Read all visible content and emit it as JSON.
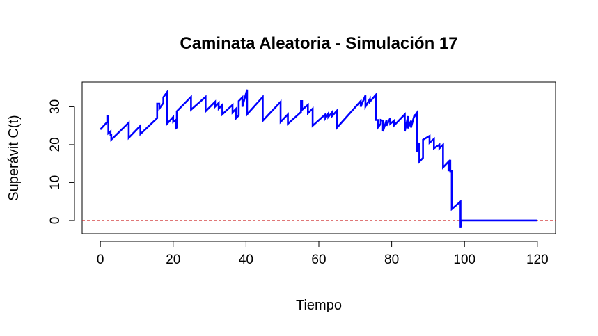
{
  "chart_data": {
    "type": "line",
    "title": "Caminata Aleatoria - Simulación 17",
    "xlabel": "Tiempo",
    "ylabel": "Superávit C(t)",
    "xlim": [
      -5,
      125
    ],
    "ylim": [
      -3.5,
      36.5
    ],
    "xticks": [
      0,
      20,
      40,
      60,
      80,
      100,
      120
    ],
    "yticks": [
      0,
      10,
      20,
      30
    ],
    "grid": false,
    "legend": "none",
    "reference_line": {
      "y": 0,
      "color": "#cd2626",
      "style": "dashed"
    },
    "series": [
      {
        "color": "#0000ff",
        "step": "vertical-drop",
        "points": [
          [
            0,
            24
          ],
          [
            1.9,
            26
          ],
          [
            1.9,
            27.5
          ],
          [
            2.2,
            27.5
          ],
          [
            2.2,
            23
          ],
          [
            2.8,
            23.5
          ],
          [
            2.8,
            22.5
          ],
          [
            3.0,
            22.5
          ],
          [
            3.0,
            21.3
          ],
          [
            7.8,
            25.8
          ],
          [
            7.8,
            21.8
          ],
          [
            11,
            25
          ],
          [
            11,
            22.8
          ],
          [
            15.6,
            27
          ],
          [
            15.6,
            30.8
          ],
          [
            16.2,
            30.8
          ],
          [
            16.2,
            29.5
          ],
          [
            17.3,
            31
          ],
          [
            17.3,
            32.5
          ],
          [
            18.3,
            33.8
          ],
          [
            18.3,
            25.5
          ],
          [
            20,
            27.3
          ],
          [
            20,
            26
          ],
          [
            20.7,
            26.5
          ],
          [
            20.7,
            24.3
          ],
          [
            21,
            24.5
          ],
          [
            21,
            28.8
          ],
          [
            24.9,
            32.6
          ],
          [
            24.9,
            29.2
          ],
          [
            28.9,
            32.6
          ],
          [
            28.9,
            28.8
          ],
          [
            31.5,
            31.3
          ],
          [
            31.5,
            30
          ],
          [
            32.5,
            31
          ],
          [
            32.5,
            29.5
          ],
          [
            33.5,
            30.5
          ],
          [
            33.5,
            28
          ],
          [
            36.3,
            30.5
          ],
          [
            36.3,
            28.5
          ],
          [
            37.3,
            29.5
          ],
          [
            37.3,
            27
          ],
          [
            38,
            27.7
          ],
          [
            38,
            31.5
          ],
          [
            39,
            32.5
          ],
          [
            39,
            30
          ],
          [
            40.3,
            34.5
          ],
          [
            40.3,
            28
          ],
          [
            44.6,
            32.6
          ],
          [
            44.6,
            26.3
          ],
          [
            49.5,
            31.3
          ],
          [
            49.5,
            26
          ],
          [
            51.5,
            28
          ],
          [
            51.5,
            25.5
          ],
          [
            55.1,
            28.6
          ],
          [
            55.1,
            31.5
          ],
          [
            55.4,
            31.5
          ],
          [
            55.4,
            29.2
          ],
          [
            57,
            30.5
          ],
          [
            57,
            28.3
          ],
          [
            58.3,
            29.5
          ],
          [
            58.3,
            25
          ],
          [
            61.8,
            28
          ],
          [
            61.8,
            27
          ],
          [
            62.6,
            28.2
          ],
          [
            62.6,
            27.3
          ],
          [
            63.6,
            28.5
          ],
          [
            63.6,
            27.5
          ],
          [
            65,
            29
          ],
          [
            65,
            24.5
          ],
          [
            71.5,
            31.5
          ],
          [
            71.5,
            30
          ],
          [
            72.8,
            33
          ],
          [
            72.8,
            30
          ],
          [
            74,
            32
          ],
          [
            74,
            31.3
          ],
          [
            75.7,
            33.2
          ],
          [
            75.7,
            26.5
          ],
          [
            76.2,
            26.5
          ],
          [
            76.2,
            24.5
          ],
          [
            77,
            25.5
          ],
          [
            77,
            26.5
          ],
          [
            77.6,
            26.3
          ],
          [
            77.6,
            23.5
          ],
          [
            78.6,
            26.5
          ],
          [
            78.6,
            25
          ],
          [
            79.6,
            27
          ],
          [
            79.6,
            25.5
          ],
          [
            80.6,
            26.3
          ],
          [
            80.6,
            25
          ],
          [
            83.6,
            28
          ],
          [
            83.6,
            23.5
          ],
          [
            84.5,
            27.5
          ],
          [
            84.5,
            24.3
          ],
          [
            85.3,
            26.3
          ],
          [
            85.3,
            24.5
          ],
          [
            86.3,
            28
          ],
          [
            86.3,
            27.5
          ],
          [
            87,
            28.5
          ],
          [
            87,
            18
          ],
          [
            87.6,
            20.5
          ],
          [
            87.6,
            15.5
          ],
          [
            88.6,
            16.5
          ],
          [
            88.6,
            21.3
          ],
          [
            90.4,
            22.3
          ],
          [
            90.4,
            20.5
          ],
          [
            91.6,
            21.5
          ],
          [
            91.6,
            19
          ],
          [
            93.1,
            20
          ],
          [
            93.1,
            19
          ],
          [
            94.1,
            20
          ],
          [
            94.1,
            14
          ],
          [
            95.6,
            15.5
          ],
          [
            95.6,
            13
          ],
          [
            96.1,
            16
          ],
          [
            96.1,
            13
          ],
          [
            96.5,
            13
          ],
          [
            96.5,
            3
          ],
          [
            98.9,
            5
          ],
          [
            98.9,
            -2
          ],
          [
            99.1,
            0
          ],
          [
            120,
            0
          ]
        ]
      }
    ]
  }
}
